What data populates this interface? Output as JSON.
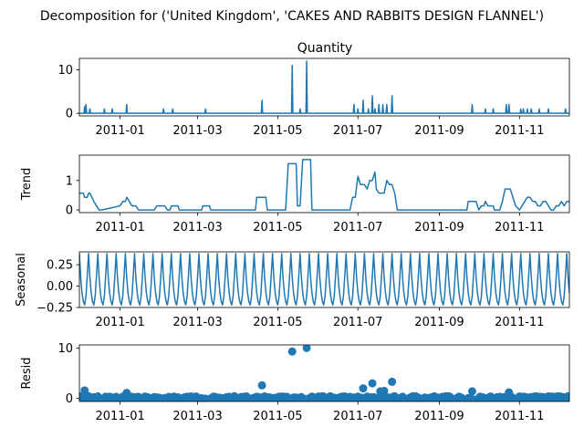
{
  "figure": {
    "title": "Decomposition for ('United Kingdom', 'CAKES AND RABBITS DESIGN FLANNEL')",
    "line_color": "#1f77b4"
  },
  "chart_data": [
    {
      "type": "line",
      "title": "Quantity",
      "ylabel": "",
      "x_range": [
        "2010-12-01",
        "2011-12-09"
      ],
      "ylim": [
        -0.6,
        12.6
      ],
      "y_ticks": [
        0,
        10
      ],
      "x_ticks": [
        "2011-01",
        "2011-03",
        "2011-05",
        "2011-07",
        "2011-09",
        "2011-11"
      ],
      "baseline": 0,
      "spikes": [
        {
          "date": "2010-12-05",
          "value": 1.5
        },
        {
          "date": "2010-12-06",
          "value": 2
        },
        {
          "date": "2010-12-09",
          "value": 1
        },
        {
          "date": "2010-12-20",
          "value": 1
        },
        {
          "date": "2010-12-26",
          "value": 1
        },
        {
          "date": "2011-01-06",
          "value": 2
        },
        {
          "date": "2011-02-03",
          "value": 1
        },
        {
          "date": "2011-02-10",
          "value": 1
        },
        {
          "date": "2011-03-07",
          "value": 1
        },
        {
          "date": "2011-04-19",
          "value": 3
        },
        {
          "date": "2011-05-12",
          "value": 11
        },
        {
          "date": "2011-05-18",
          "value": 1
        },
        {
          "date": "2011-05-23",
          "value": 12
        },
        {
          "date": "2011-06-28",
          "value": 2
        },
        {
          "date": "2011-07-01",
          "value": 1
        },
        {
          "date": "2011-07-05",
          "value": 3
        },
        {
          "date": "2011-07-09",
          "value": 1
        },
        {
          "date": "2011-07-12",
          "value": 4
        },
        {
          "date": "2011-07-14",
          "value": 1
        },
        {
          "date": "2011-07-17",
          "value": 2
        },
        {
          "date": "2011-07-20",
          "value": 2
        },
        {
          "date": "2011-07-23",
          "value": 2
        },
        {
          "date": "2011-07-27",
          "value": 4
        },
        {
          "date": "2011-09-26",
          "value": 2
        },
        {
          "date": "2011-10-06",
          "value": 1
        },
        {
          "date": "2011-10-12",
          "value": 1
        },
        {
          "date": "2011-10-22",
          "value": 2
        },
        {
          "date": "2011-10-24",
          "value": 2
        },
        {
          "date": "2011-11-02",
          "value": 1
        },
        {
          "date": "2011-11-04",
          "value": 1
        },
        {
          "date": "2011-11-07",
          "value": 1
        },
        {
          "date": "2011-11-10",
          "value": 1
        },
        {
          "date": "2011-11-16",
          "value": 1
        },
        {
          "date": "2011-11-23",
          "value": 1
        },
        {
          "date": "2011-12-06",
          "value": 1
        }
      ]
    },
    {
      "type": "line",
      "title": "",
      "ylabel": "Trend",
      "x_range": [
        "2010-12-01",
        "2011-12-09"
      ],
      "ylim": [
        -0.09,
        1.86
      ],
      "y_ticks": [
        0,
        1
      ],
      "x_ticks": [
        "2011-01",
        "2011-03",
        "2011-05",
        "2011-07",
        "2011-09",
        "2011-11"
      ],
      "points": [
        [
          "2010-12-01",
          0.57
        ],
        [
          "2010-12-04",
          0.57
        ],
        [
          "2010-12-05",
          0.43
        ],
        [
          "2010-12-07",
          0.43
        ],
        [
          "2010-12-08",
          0.57
        ],
        [
          "2010-12-09",
          0.57
        ],
        [
          "2010-12-12",
          0.29
        ],
        [
          "2010-12-14",
          0.14
        ],
        [
          "2010-12-16",
          0.0
        ],
        [
          "2010-12-18",
          0.0
        ],
        [
          "2011-01-01",
          0.14
        ],
        [
          "2011-01-03",
          0.29
        ],
        [
          "2011-01-05",
          0.29
        ],
        [
          "2011-01-06",
          0.43
        ],
        [
          "2011-01-08",
          0.29
        ],
        [
          "2011-01-10",
          0.14
        ],
        [
          "2011-01-13",
          0.14
        ],
        [
          "2011-01-15",
          0.0
        ],
        [
          "2011-01-27",
          0.0
        ],
        [
          "2011-01-29",
          0.14
        ],
        [
          "2011-02-04",
          0.14
        ],
        [
          "2011-02-06",
          0.0
        ],
        [
          "2011-02-08",
          0.0
        ],
        [
          "2011-02-09",
          0.14
        ],
        [
          "2011-02-14",
          0.14
        ],
        [
          "2011-02-15",
          0.0
        ],
        [
          "2011-03-04",
          0.0
        ],
        [
          "2011-03-05",
          0.14
        ],
        [
          "2011-03-10",
          0.14
        ],
        [
          "2011-03-11",
          0.0
        ],
        [
          "2011-04-14",
          0.0
        ],
        [
          "2011-04-15",
          0.43
        ],
        [
          "2011-04-22",
          0.43
        ],
        [
          "2011-04-23",
          0.0
        ],
        [
          "2011-05-07",
          0.0
        ],
        [
          "2011-05-09",
          1.57
        ],
        [
          "2011-05-15",
          1.57
        ],
        [
          "2011-05-16",
          0.14
        ],
        [
          "2011-05-18",
          0.14
        ],
        [
          "2011-05-20",
          1.71
        ],
        [
          "2011-05-26",
          1.71
        ],
        [
          "2011-05-27",
          0.0
        ],
        [
          "2011-06-25",
          0.0
        ],
        [
          "2011-06-27",
          0.43
        ],
        [
          "2011-06-29",
          0.43
        ],
        [
          "2011-07-01",
          1.14
        ],
        [
          "2011-07-03",
          0.86
        ],
        [
          "2011-07-06",
          0.86
        ],
        [
          "2011-07-08",
          0.71
        ],
        [
          "2011-07-10",
          1.0
        ],
        [
          "2011-07-12",
          1.0
        ],
        [
          "2011-07-14",
          1.29
        ],
        [
          "2011-07-15",
          0.71
        ],
        [
          "2011-07-17",
          0.57
        ],
        [
          "2011-07-19",
          0.57
        ],
        [
          "2011-07-21",
          0.57
        ],
        [
          "2011-07-23",
          1.0
        ],
        [
          "2011-07-25",
          0.86
        ],
        [
          "2011-07-27",
          0.86
        ],
        [
          "2011-07-29",
          0.57
        ],
        [
          "2011-07-31",
          0.0
        ],
        [
          "2011-09-22",
          0.0
        ],
        [
          "2011-09-23",
          0.29
        ],
        [
          "2011-09-29",
          0.29
        ],
        [
          "2011-10-01",
          0.0
        ],
        [
          "2011-10-03",
          0.14
        ],
        [
          "2011-10-05",
          0.14
        ],
        [
          "2011-10-06",
          0.29
        ],
        [
          "2011-10-08",
          0.14
        ],
        [
          "2011-10-12",
          0.14
        ],
        [
          "2011-10-13",
          0.0
        ],
        [
          "2011-10-17",
          0.0
        ],
        [
          "2011-10-19",
          0.29
        ],
        [
          "2011-10-21",
          0.71
        ],
        [
          "2011-10-25",
          0.71
        ],
        [
          "2011-10-27",
          0.43
        ],
        [
          "2011-10-29",
          0.14
        ],
        [
          "2011-11-01",
          0.0
        ],
        [
          "2011-11-03",
          0.14
        ],
        [
          "2011-11-05",
          0.29
        ],
        [
          "2011-11-07",
          0.43
        ],
        [
          "2011-11-09",
          0.43
        ],
        [
          "2011-11-11",
          0.29
        ],
        [
          "2011-11-13",
          0.29
        ],
        [
          "2011-11-15",
          0.14
        ],
        [
          "2011-11-17",
          0.14
        ],
        [
          "2011-11-19",
          0.29
        ],
        [
          "2011-11-21",
          0.29
        ],
        [
          "2011-11-23",
          0.14
        ],
        [
          "2011-11-25",
          0.0
        ],
        [
          "2011-11-27",
          0.0
        ],
        [
          "2011-11-29",
          0.14
        ],
        [
          "2011-12-01",
          0.14
        ],
        [
          "2011-12-03",
          0.29
        ],
        [
          "2011-12-05",
          0.14
        ],
        [
          "2011-12-07",
          0.29
        ],
        [
          "2011-12-09",
          0.29
        ]
      ]
    },
    {
      "type": "line",
      "title": "",
      "ylabel": "Seasonal",
      "x_range": [
        "2010-12-01",
        "2011-12-09"
      ],
      "ylim": [
        -0.25,
        0.4
      ],
      "y_ticks": [
        -0.25,
        0.0,
        0.25
      ],
      "y_tick_labels": [
        "−0.25",
        "0.00",
        "0.25"
      ],
      "x_ticks": [
        "2011-01",
        "2011-03",
        "2011-05",
        "2011-07",
        "2011-09",
        "2011-11"
      ],
      "period_days": 7,
      "weekly_pattern": [
        0.38,
        0.1,
        -0.08,
        -0.18,
        -0.22,
        -0.12,
        0.12
      ]
    },
    {
      "type": "scatter",
      "title": "",
      "ylabel": "Resid",
      "x_range": [
        "2010-12-01",
        "2011-12-09"
      ],
      "ylim": [
        -0.6,
        10.6
      ],
      "y_ticks": [
        0,
        10
      ],
      "x_ticks": [
        "2011-01",
        "2011-03",
        "2011-05",
        "2011-07",
        "2011-09",
        "2011-11"
      ],
      "outliers": [
        {
          "date": "2011-05-12",
          "value": 9.3
        },
        {
          "date": "2011-05-23",
          "value": 10.0
        },
        {
          "date": "2011-04-19",
          "value": 2.6
        },
        {
          "date": "2011-07-12",
          "value": 3.0
        },
        {
          "date": "2011-07-27",
          "value": 3.3
        },
        {
          "date": "2010-12-05",
          "value": 1.6
        },
        {
          "date": "2011-07-05",
          "value": 2.0
        },
        {
          "date": "2011-09-26",
          "value": 1.4
        },
        {
          "date": "2011-01-06",
          "value": 1.1
        },
        {
          "date": "2011-10-24",
          "value": 1.2
        },
        {
          "date": "2011-05-14",
          "value": -1.5
        },
        {
          "date": "2011-05-21",
          "value": -1.4
        },
        {
          "date": "2011-05-25",
          "value": -1.3
        },
        {
          "date": "2011-07-18",
          "value": 1.4
        },
        {
          "date": "2011-07-21",
          "value": 1.5
        }
      ]
    }
  ]
}
